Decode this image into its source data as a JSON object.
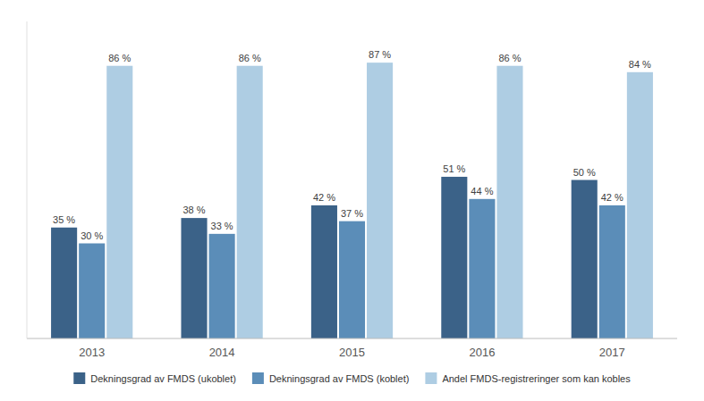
{
  "chart_data": {
    "type": "bar",
    "categories": [
      "2013",
      "2014",
      "2015",
      "2016",
      "2017"
    ],
    "series": [
      {
        "name": "Dekningsgrad av FMDS (ukoblet)",
        "color": "#3B6288",
        "values": [
          35,
          38,
          42,
          51,
          50
        ],
        "value_labels": [
          "35 %",
          "38 %",
          "42 %",
          "51 %",
          "50 %"
        ]
      },
      {
        "name": "Dekningsgrad av FMDS (koblet)",
        "color": "#5B8DB8",
        "values": [
          30,
          33,
          37,
          44,
          42
        ],
        "value_labels": [
          "30 %",
          "33 %",
          "37 %",
          "44 %",
          "42 %"
        ]
      },
      {
        "name": "Andel FMDS-registreringer som kan kobles",
        "color": "#AECDE3",
        "values": [
          86,
          86,
          87,
          86,
          84
        ],
        "value_labels": [
          "86 %",
          "86 %",
          "87 %",
          "86 %",
          "84 %"
        ]
      }
    ],
    "ylim": [
      0,
      100
    ],
    "grid": false,
    "legend": "bottom",
    "data_labels": true,
    "tick_labels": "x"
  }
}
